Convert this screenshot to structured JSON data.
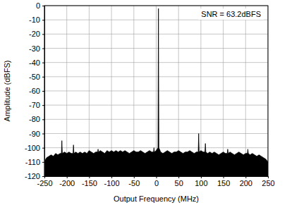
{
  "chart_data": {
    "type": "area",
    "color": "#000000",
    "grid": true,
    "xlabel": "Output Frequency (MHz)",
    "ylabel": "Amplitude (dBFS)",
    "annotation": "SNR = 63.2dBFS",
    "xlim": [
      -250,
      250
    ],
    "xticks": [
      -250,
      -200,
      -150,
      -100,
      -50,
      0,
      50,
      100,
      150,
      200,
      250
    ],
    "ylim": [
      -120,
      0
    ],
    "yticks": [
      -120,
      -110,
      -100,
      -90,
      -80,
      -70,
      -60,
      -50,
      -40,
      -30,
      -20,
      -10,
      0
    ],
    "x": [
      -250,
      -247,
      -245,
      -240,
      -235,
      -230,
      -225,
      -220,
      -215,
      -212,
      -211,
      -210,
      -205,
      -200,
      -195,
      -190,
      -186,
      -185,
      -184,
      -180,
      -175,
      -170,
      -165,
      -160,
      -155,
      -150,
      -145,
      -140,
      -135,
      -131,
      -130,
      -129,
      -125,
      -120,
      -115,
      -110,
      -105,
      -100,
      -95,
      -90,
      -85,
      -80,
      -75,
      -70,
      -65,
      -60,
      -55,
      -50,
      -45,
      -40,
      -35,
      -30,
      -25,
      -20,
      -15,
      -10,
      -6,
      -5,
      -4,
      0,
      4,
      5,
      6,
      10,
      15,
      20,
      25,
      30,
      35,
      40,
      45,
      50,
      55,
      60,
      65,
      70,
      75,
      80,
      85,
      90,
      94,
      95,
      96,
      100,
      105,
      109,
      110,
      111,
      115,
      120,
      125,
      130,
      135,
      140,
      145,
      150,
      155,
      159,
      160,
      161,
      165,
      170,
      175,
      180,
      185,
      190,
      195,
      200,
      204,
      205,
      206,
      210,
      215,
      220,
      225,
      230,
      235,
      240,
      245,
      250
    ],
    "values": [
      -110,
      -108,
      -107,
      -106,
      -105,
      -106,
      -104,
      -105,
      -104,
      -104,
      -95,
      -104,
      -103,
      -104,
      -103,
      -104,
      -104,
      -98,
      -104,
      -103,
      -104,
      -103,
      -104,
      -103,
      -104,
      -102,
      -103,
      -104,
      -103,
      -103,
      -101,
      -103,
      -102,
      -103,
      -104,
      -102,
      -103,
      -102,
      -103,
      -102,
      -103,
      -102,
      -103,
      -102,
      -103,
      -104,
      -103,
      -102,
      -103,
      -103,
      -102,
      -103,
      -104,
      -103,
      -102,
      -103,
      -103,
      -100,
      -103,
      -102,
      -100,
      -2,
      -100,
      -103,
      -104,
      -103,
      -102,
      -103,
      -104,
      -103,
      -103,
      -102,
      -103,
      -104,
      -103,
      -103,
      -102,
      -103,
      -104,
      -103,
      -103,
      -90,
      -103,
      -102,
      -103,
      -103,
      -97,
      -103,
      -104,
      -103,
      -104,
      -103,
      -104,
      -105,
      -104,
      -103,
      -104,
      -104,
      -101,
      -104,
      -103,
      -104,
      -105,
      -104,
      -103,
      -104,
      -105,
      -104,
      -104,
      -101,
      -104,
      -105,
      -104,
      -105,
      -106,
      -105,
      -106,
      -107,
      -108,
      -110
    ]
  }
}
